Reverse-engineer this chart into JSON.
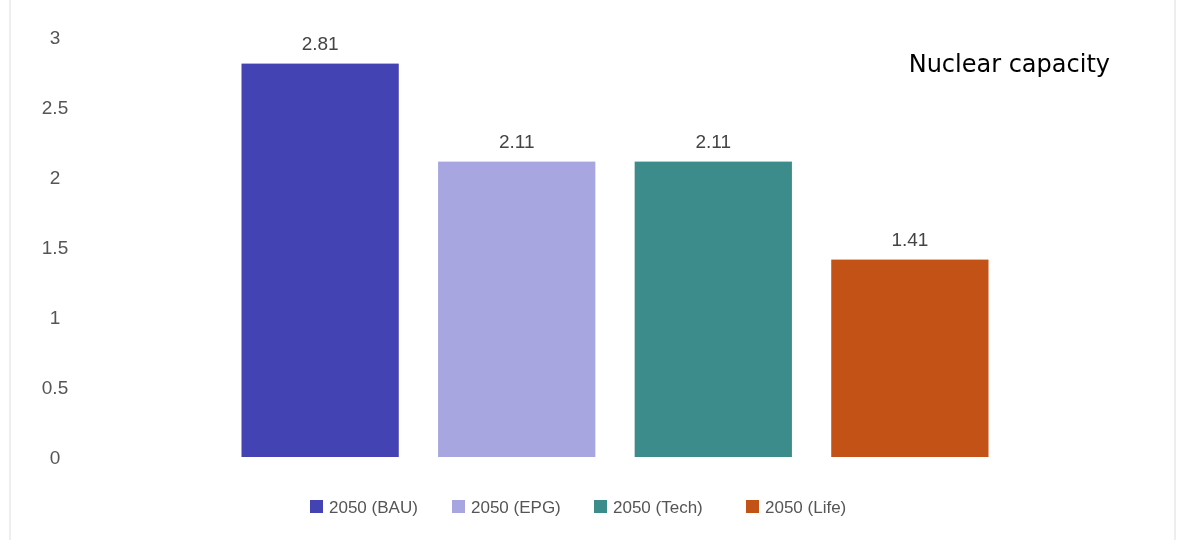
{
  "chart_data": {
    "type": "bar",
    "title": "Nuclear capacity",
    "categories": [
      null
    ],
    "series": [
      {
        "name": "2050 (BAU)",
        "color": "#4343b3",
        "values": [
          2.81
        ]
      },
      {
        "name": "2050 (EPG)",
        "color": "#a7a6e0",
        "values": [
          2.11
        ]
      },
      {
        "name": "2050 (Tech)",
        "color": "#3d8c8c",
        "values": [
          2.11
        ]
      },
      {
        "name": "2050 (Life)",
        "color": "#c25216",
        "values": [
          1.41
        ]
      }
    ],
    "ylim": [
      0,
      3
    ],
    "yticks": [
      0,
      0.5,
      1,
      1.5,
      2,
      2.5,
      3
    ],
    "data_labels": true,
    "legend": "bottom",
    "grid": false
  }
}
